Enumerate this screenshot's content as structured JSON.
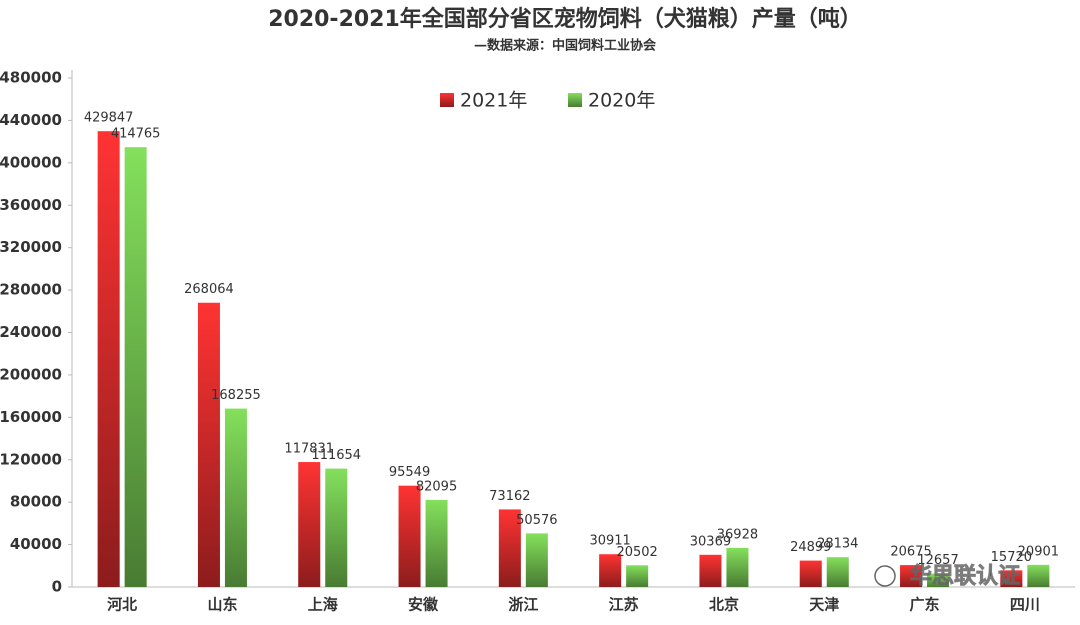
{
  "chart_data": {
    "type": "bar",
    "title": "2020-2021年全国部分省区宠物饲料（犬猫粮）产量（吨）",
    "subtitle": "—数据来源：中国饲料工业协会",
    "categories": [
      "河北",
      "山东",
      "上海",
      "安徽",
      "浙江",
      "江苏",
      "北京",
      "天津",
      "广东",
      "四川"
    ],
    "series": [
      {
        "name": "2021年",
        "color": "#ff3333",
        "values": [
          429847,
          268064,
          117831,
          95549,
          73162,
          30911,
          30369,
          24899,
          20675,
          15720
        ]
      },
      {
        "name": "2020年",
        "color": "#84e05c",
        "values": [
          414765,
          168255,
          111654,
          82095,
          50576,
          20502,
          36928,
          28134,
          12657,
          20901
        ]
      }
    ],
    "ylim": [
      0,
      480000
    ],
    "yticks": [
      0,
      40000,
      80000,
      120000,
      160000,
      200000,
      240000,
      280000,
      320000,
      360000,
      400000,
      440000,
      480000
    ],
    "legend": "top",
    "watermark": "华思联认证"
  }
}
